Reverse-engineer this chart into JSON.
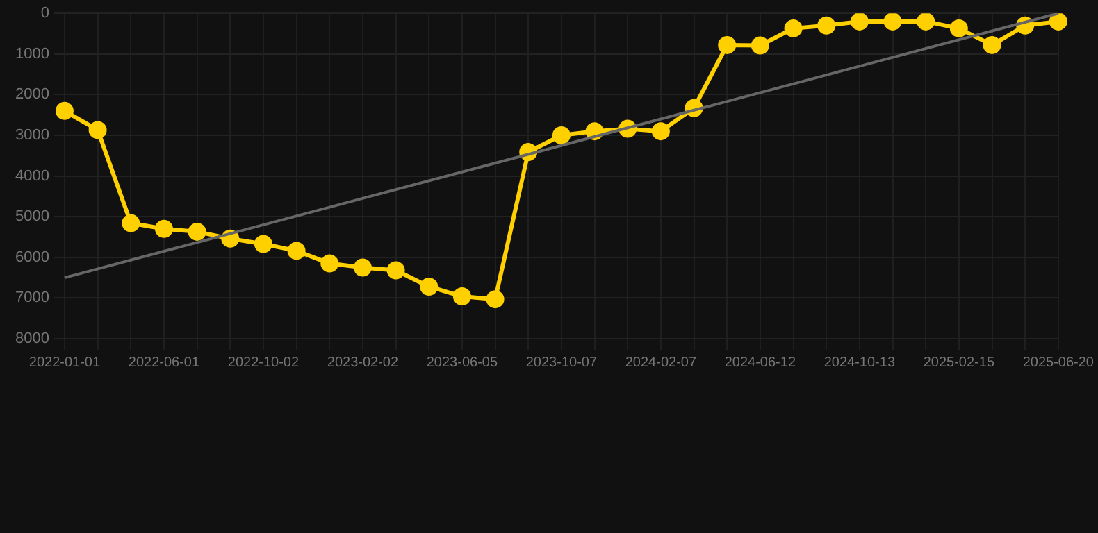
{
  "chart_data": {
    "type": "line",
    "categories": [
      "2022-01-01",
      null,
      null,
      "2022-06-01",
      null,
      null,
      "2022-10-02",
      null,
      null,
      "2023-02-02",
      null,
      null,
      "2023-06-05",
      null,
      null,
      "2023-10-07",
      null,
      null,
      "2024-02-07",
      null,
      null,
      "2024-06-12",
      null,
      null,
      "2024-10-13",
      null,
      null,
      "2025-02-15",
      null,
      null,
      "2025-06-20"
    ],
    "series": [
      {
        "type": "line",
        "color": "#666666",
        "marker": "none",
        "values": [
          6500,
          null,
          null,
          null,
          null,
          null,
          null,
          null,
          null,
          null,
          null,
          null,
          null,
          null,
          null,
          null,
          null,
          null,
          null,
          null,
          null,
          null,
          null,
          null,
          null,
          null,
          null,
          null,
          null,
          null,
          0
        ]
      },
      {
        "type": "line",
        "color": "#ffd000",
        "marker": "circle",
        "values": [
          2400,
          2870,
          5160,
          5300,
          5370,
          5540,
          5670,
          5840,
          6150,
          6250,
          6320,
          6720,
          6960,
          7030,
          3410,
          3000,
          2900,
          2840,
          2900,
          2330,
          780,
          790,
          370,
          300,
          200,
          200,
          200,
          370,
          780,
          300,
          200
        ]
      }
    ],
    "ylim": [
      8000,
      0
    ],
    "yticks": [
      0,
      1000,
      2000,
      3000,
      4000,
      5000,
      6000,
      7000,
      8000
    ],
    "grid": true,
    "legend": false
  }
}
